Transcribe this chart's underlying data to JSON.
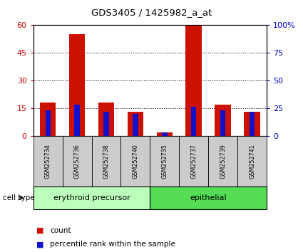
{
  "title": "GDS3405 / 1425982_a_at",
  "samples": [
    "GSM252734",
    "GSM252736",
    "GSM252738",
    "GSM252740",
    "GSM252735",
    "GSM252737",
    "GSM252739",
    "GSM252741"
  ],
  "count_values": [
    18,
    55,
    18,
    13,
    2,
    60,
    17,
    13
  ],
  "percentile_values": [
    14,
    17,
    13,
    12,
    2,
    16,
    14,
    13
  ],
  "groups": [
    {
      "label": "erythroid precursor",
      "samples_idx": [
        0,
        1,
        2,
        3
      ],
      "color": "#bbffbb"
    },
    {
      "label": "epithelial",
      "samples_idx": [
        4,
        5,
        6,
        7
      ],
      "color": "#55dd55"
    }
  ],
  "ylim_left": [
    0,
    60
  ],
  "ylim_right": [
    0,
    100
  ],
  "yticks_left": [
    0,
    15,
    30,
    45,
    60
  ],
  "yticks_right": [
    0,
    25,
    50,
    75,
    100
  ],
  "yticklabels_right": [
    "0",
    "25",
    "50",
    "75",
    "100%"
  ],
  "bar_color_count": "#cc1100",
  "bar_color_pct": "#1111cc",
  "bar_width": 0.55,
  "pct_bar_width": 0.18,
  "tick_label_color_left": "#cc0000",
  "tick_label_color_right": "#0000cc",
  "cell_type_label": "cell type",
  "legend_count_label": "count",
  "legend_pct_label": "percentile rank within the sample",
  "sample_bg_color": "#cccccc",
  "grp_separator": 3.5
}
